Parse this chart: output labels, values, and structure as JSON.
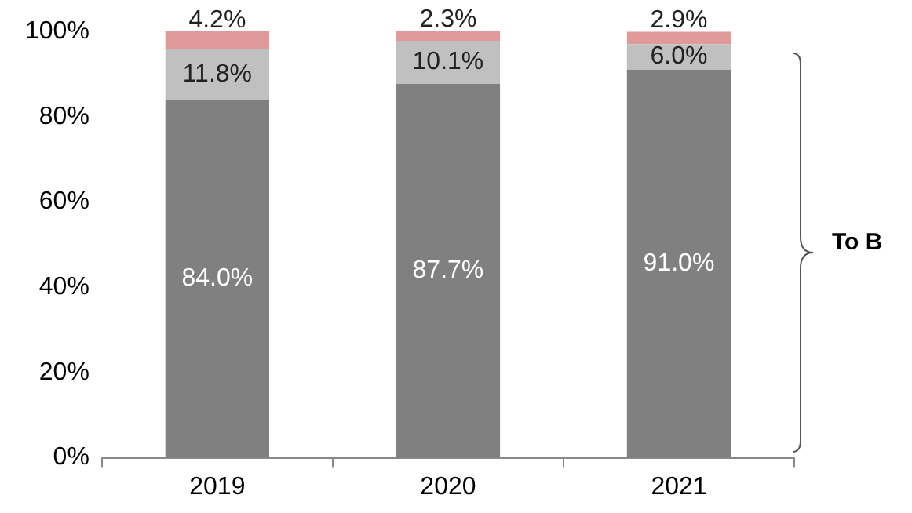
{
  "chart_data": {
    "type": "bar",
    "stacked": true,
    "categories": [
      "2019",
      "2020",
      "2021"
    ],
    "series": [
      {
        "color": "#808080",
        "values": [
          84.0,
          87.7,
          91.0
        ],
        "value_labels": [
          "84.0%",
          "87.7%",
          "91.0%"
        ]
      },
      {
        "color": "#c0c0c0",
        "values": [
          11.8,
          10.1,
          6.0
        ],
        "value_labels": [
          "11.8%",
          "10.1%",
          "6.0%"
        ]
      },
      {
        "color": "#e09a9a",
        "values": [
          4.2,
          2.3,
          2.9
        ],
        "value_labels": [
          "4.2%",
          "2.3%",
          "2.9%"
        ]
      }
    ],
    "ylim": [
      0,
      100
    ],
    "yticks": [
      {
        "value": 0,
        "label": "0%"
      },
      {
        "value": 20,
        "label": "20%"
      },
      {
        "value": 40,
        "label": "40%"
      },
      {
        "value": 60,
        "label": "60%"
      },
      {
        "value": 80,
        "label": "80%"
      },
      {
        "value": 100,
        "label": "100%"
      }
    ],
    "grid": false,
    "legend": false,
    "annotations": [
      "To B"
    ]
  }
}
